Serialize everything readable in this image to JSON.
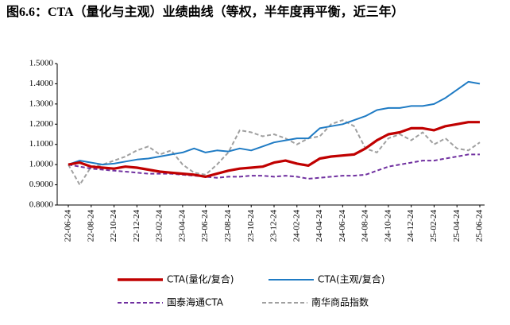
{
  "chart_data": {
    "type": "line",
    "title": "图6.6：CTA（量化与主观）业绩曲线（等权，半年度再平衡，近三年）",
    "categories": [
      "22-06-24",
      null,
      "22-08-24",
      null,
      "22-10-24",
      null,
      "22-12-24",
      null,
      "23-02-24",
      null,
      "23-04-24",
      null,
      "23-06-24",
      null,
      "23-08-24",
      null,
      "23-10-24",
      null,
      "23-12-24",
      null,
      "24-02-24",
      null,
      "24-04-24",
      null,
      "24-06-24",
      null,
      "24-08-24",
      null,
      "24-10-24",
      null,
      "24-12-24",
      null,
      "25-02-24",
      null,
      "25-04-24",
      null,
      "25-06-24"
    ],
    "series": [
      {
        "name": "CTA(量化/复合)",
        "color": "#c00000",
        "dashed": false,
        "values": [
          1.0,
          1.01,
          0.99,
          0.985,
          0.98,
          0.99,
          0.985,
          0.975,
          0.965,
          0.96,
          0.955,
          0.95,
          0.94,
          0.955,
          0.97,
          0.98,
          0.985,
          0.99,
          1.01,
          1.02,
          1.005,
          0.995,
          1.03,
          1.04,
          1.045,
          1.05,
          1.08,
          1.12,
          1.15,
          1.16,
          1.18,
          1.18,
          1.17,
          1.19,
          1.2,
          1.21,
          1.21
        ]
      },
      {
        "name": "CTA(主观/复合)",
        "color": "#1f7bc4",
        "dashed": false,
        "values": [
          1.0,
          1.02,
          1.01,
          1.0,
          1.005,
          1.015,
          1.025,
          1.03,
          1.04,
          1.05,
          1.06,
          1.08,
          1.06,
          1.07,
          1.065,
          1.08,
          1.07,
          1.09,
          1.11,
          1.12,
          1.13,
          1.13,
          1.18,
          1.19,
          1.2,
          1.22,
          1.24,
          1.27,
          1.28,
          1.28,
          1.29,
          1.29,
          1.3,
          1.33,
          1.37,
          1.41,
          1.4
        ]
      },
      {
        "name": "国泰海通CTA",
        "color": "#7030a0",
        "dashed": true,
        "values": [
          1.0,
          0.99,
          0.98,
          0.975,
          0.97,
          0.965,
          0.96,
          0.955,
          0.955,
          0.955,
          0.95,
          0.945,
          0.94,
          0.935,
          0.94,
          0.94,
          0.945,
          0.945,
          0.94,
          0.945,
          0.94,
          0.93,
          0.935,
          0.94,
          0.945,
          0.945,
          0.95,
          0.97,
          0.99,
          1.0,
          1.01,
          1.02,
          1.02,
          1.03,
          1.04,
          1.05,
          1.05
        ]
      },
      {
        "name": "南华商品指数",
        "color": "#a0a0a0",
        "dashed": true,
        "values": [
          1.0,
          0.9,
          0.99,
          1.0,
          1.02,
          1.04,
          1.07,
          1.09,
          1.05,
          1.07,
          1.0,
          0.96,
          0.95,
          1.0,
          1.06,
          1.17,
          1.16,
          1.14,
          1.15,
          1.13,
          1.1,
          1.13,
          1.14,
          1.2,
          1.22,
          1.19,
          1.08,
          1.06,
          1.13,
          1.15,
          1.12,
          1.16,
          1.1,
          1.13,
          1.08,
          1.07,
          1.11
        ]
      }
    ],
    "ylim": [
      0.8,
      1.5
    ],
    "yticks": [
      {
        "value": 0.8,
        "label": "0.8000"
      },
      {
        "value": 0.9,
        "label": "0.9000"
      },
      {
        "value": 1.0,
        "label": "1.0000"
      },
      {
        "value": 1.1,
        "label": "1.1000"
      },
      {
        "value": 1.2,
        "label": "1.2000"
      },
      {
        "value": 1.3,
        "label": "1.3000"
      },
      {
        "value": 1.4,
        "label": "1.4000"
      },
      {
        "value": 1.5,
        "label": "1.5000"
      }
    ],
    "grid": false,
    "legend": "bottom"
  }
}
